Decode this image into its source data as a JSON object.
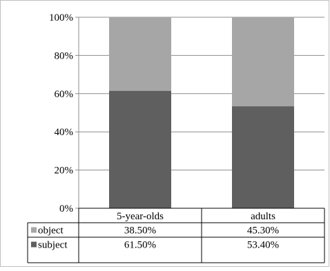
{
  "chart_data": {
    "type": "bar",
    "stacked": true,
    "categories": [
      "5-year-olds",
      "adults"
    ],
    "series": [
      {
        "name": "subject",
        "values": [
          61.5,
          53.4
        ],
        "labels": [
          "61.50%",
          "53.40%"
        ],
        "color": "#5f5f5f"
      },
      {
        "name": "object",
        "values": [
          38.5,
          45.3
        ],
        "labels": [
          "38.50%",
          "45.30%"
        ],
        "color": "#a6a6a6"
      }
    ],
    "ylim": [
      0,
      100
    ],
    "yticks": [
      "0%",
      "20%",
      "40%",
      "60%",
      "80%",
      "100%"
    ],
    "grid": true,
    "legend": "data-table",
    "data_table_rows": [
      "object",
      "subject"
    ]
  }
}
